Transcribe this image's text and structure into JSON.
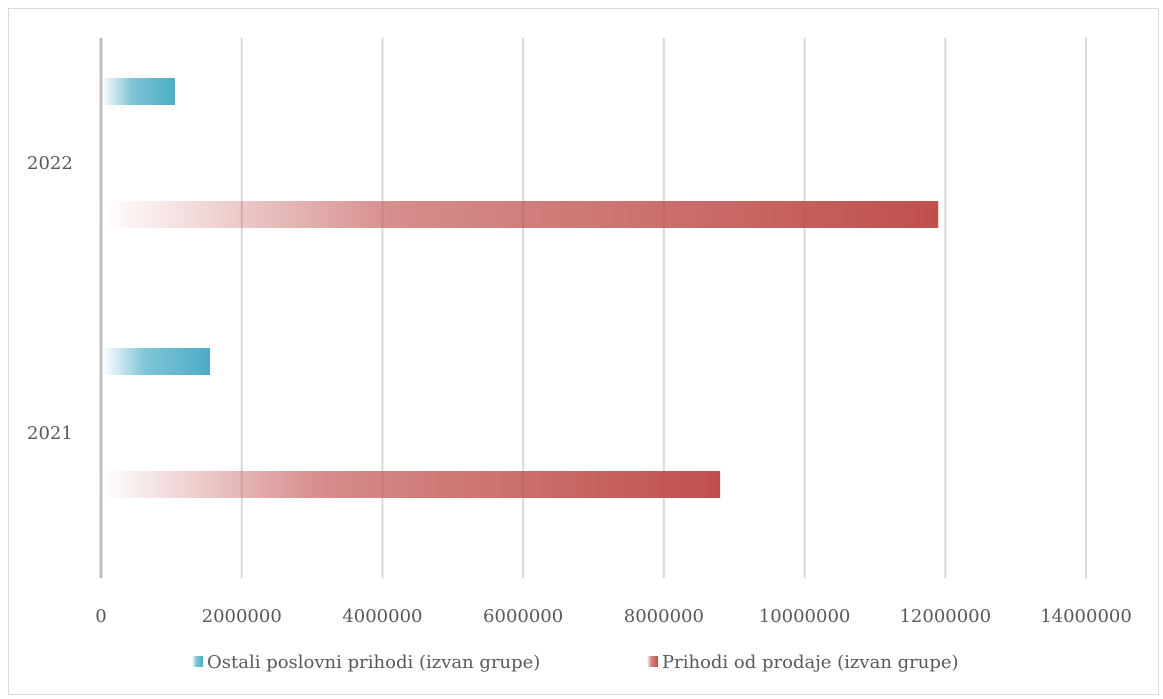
{
  "chart_data": {
    "type": "bar",
    "orientation": "horizontal",
    "categories": [
      "2021",
      "2022"
    ],
    "series": [
      {
        "name": "Prihodi od prodaje (izvan grupe)",
        "values": [
          8800000,
          11900000
        ],
        "color": "#c0504d"
      },
      {
        "name": "Ostali poslovni prihodi (izvan grupe)",
        "values": [
          1550000,
          1050000
        ],
        "color": "#4bacc6"
      }
    ],
    "xlim": [
      0,
      14000000
    ],
    "xticks": [
      "0",
      "2000000",
      "4000000",
      "6000000",
      "8000000",
      "10000000",
      "12000000",
      "14000000"
    ],
    "grid": true,
    "legend_position": "bottom",
    "legend": [
      "Ostali poslovni prihodi (izvan grupe)",
      "Prihodi od prodaje (izvan grupe)"
    ]
  }
}
